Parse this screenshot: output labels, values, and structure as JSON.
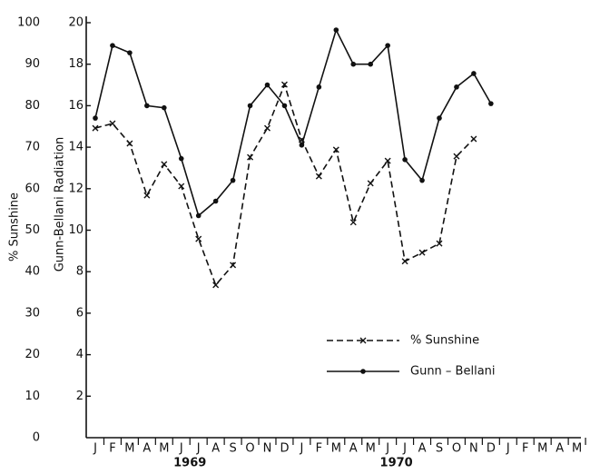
{
  "chart_data": {
    "type": "line",
    "ylabel": "% Sunshine",
    "y2label": "Gunn-Bellani Radiation",
    "categories": [
      "J",
      "F",
      "M",
      "A",
      "M",
      "J",
      "J",
      "A",
      "S",
      "O",
      "N",
      "D",
      "J",
      "F",
      "M",
      "A",
      "M",
      "J",
      "J",
      "A",
      "S",
      "O",
      "N",
      "D",
      "J",
      "F",
      "M",
      "A",
      "M"
    ],
    "year_labels": [
      "1969",
      "1970"
    ],
    "ylim": [
      0,
      100
    ],
    "yticks": [
      0,
      10,
      20,
      30,
      40,
      50,
      60,
      70,
      80,
      90,
      100
    ],
    "y2lim": [
      0,
      20
    ],
    "y2ticks": [
      2,
      4,
      6,
      8,
      10,
      12,
      14,
      16,
      18,
      20
    ],
    "legend": "center",
    "series": [
      {
        "name": "% Sunshine",
        "color": "#111",
        "dash": true,
        "marker": "x",
        "values": [
          74.6,
          75.7,
          70.9,
          58.4,
          65.9,
          60.6,
          47.9,
          36.8,
          41.6,
          67.6,
          74.6,
          85.1,
          71.8,
          63.0,
          69.4,
          51.9,
          61.3,
          66.7,
          42.5,
          44.6,
          46.8,
          67.8,
          72.0,
          null,
          null,
          null,
          null,
          null,
          null
        ]
      },
      {
        "name": "Gunn – Bellani",
        "color": "#111",
        "dash": false,
        "marker": "circle",
        "axis": "y2",
        "values": [
          15.4,
          18.9,
          18.55,
          16.0,
          15.9,
          13.45,
          10.7,
          11.4,
          12.4,
          16.0,
          17.0,
          16.0,
          14.1,
          16.9,
          19.65,
          18.0,
          18.0,
          18.9,
          13.4,
          12.4,
          15.4,
          16.9,
          17.55,
          16.1,
          null,
          null,
          null,
          null,
          null
        ]
      }
    ]
  }
}
